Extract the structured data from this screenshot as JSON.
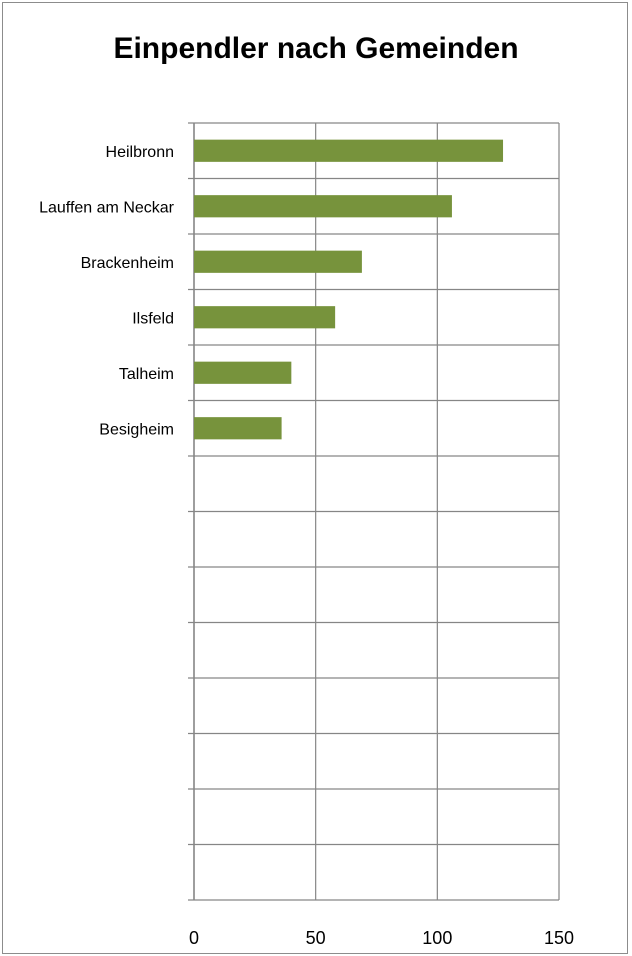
{
  "chart_data": {
    "type": "bar",
    "orientation": "horizontal",
    "title": "Einpendler nach Gemeinden",
    "categories": [
      "Heilbronn",
      "Lauffen am Neckar",
      "Brackenheim",
      "Ilsfeld",
      "Talheim",
      "Besigheim"
    ],
    "values": [
      127,
      106,
      69,
      58,
      40,
      36
    ],
    "xlim": [
      0,
      150
    ],
    "xticks": [
      "0",
      "50",
      "100",
      "150"
    ],
    "xlabel": "",
    "ylabel": "",
    "empty_category_rows": 8,
    "grid": true,
    "bar_color": "#77933c",
    "grid_color": "#868686"
  }
}
